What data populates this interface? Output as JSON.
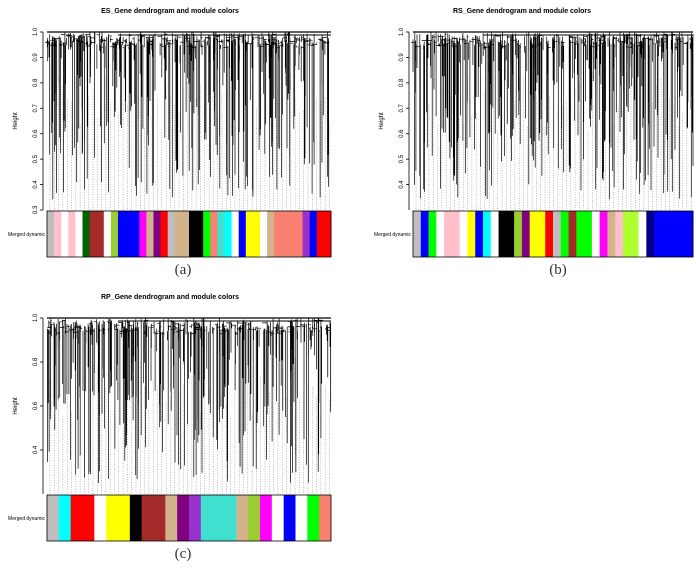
{
  "panels": [
    {
      "title": "ES_Gene dendrogram and module colors",
      "y_axis_label": "Height",
      "y_ticks": [
        "0.3",
        "0.4",
        "0.5",
        "0.6",
        "0.7",
        "0.8",
        "0.9",
        "1.0"
      ],
      "y_range": [
        0.3,
        1.0
      ],
      "color_row_label": "Merged dynamic",
      "caption": "(a)",
      "module_colors": [
        "#bebebe",
        "#ffc0cb",
        "#ffffff",
        "#ffc0cb",
        "#ffffff",
        "#006400",
        "#a52a2a",
        "#a52a2a",
        "#ffffff",
        "#9acd32",
        "#0000ff",
        "#0000ff",
        "#0000ff",
        "#ff00ff",
        "#d2b48c",
        "#800080",
        "#ff0000",
        "#bebebe",
        "#d2b48c",
        "#d2b48c",
        "#000000",
        "#000000",
        "#00ff00",
        "#fa8072",
        "#40e0d0",
        "#00ffff",
        "#ffffff",
        "#0000ff",
        "#ffff00",
        "#ffff00",
        "#ffffff",
        "#d2b48c",
        "#fa8072",
        "#fa8072",
        "#fa8072",
        "#fa8072",
        "#9932cc",
        "#0000ff",
        "#ff0000",
        "#ff0000"
      ]
    },
    {
      "title": "RS_Gene dendrogram and module colors",
      "y_axis_label": "Height",
      "y_ticks": [
        "0.4",
        "0.5",
        "0.6",
        "0.7",
        "0.8",
        "0.9",
        "1.0"
      ],
      "y_range": [
        0.3,
        1.0
      ],
      "color_row_label": "Merged dynamic",
      "caption": "(b)",
      "module_colors": [
        "#bebebe",
        "#0000ff",
        "#00ff00",
        "#ffffff",
        "#ffc0cb",
        "#ffc0cb",
        "#ffffff",
        "#ffff00",
        "#0000ff",
        "#00ffff",
        "#ffffff",
        "#000000",
        "#000000",
        "#9acd32",
        "#800080",
        "#ffff00",
        "#ffff00",
        "#ff0000",
        "#bebebe",
        "#00ff00",
        "#a52a2a",
        "#00ff00",
        "#00ff00",
        "#ffffff",
        "#ff00ff",
        "#d2b48c",
        "#ffc0cb",
        "#adff2f",
        "#adff2f",
        "#ffffff",
        "#00008b",
        "#0000ff",
        "#0000ff",
        "#0000ff",
        "#0000ff",
        "#0000ff"
      ]
    },
    {
      "title": "RP_Gene dendrogram and module colors",
      "y_axis_label": "Height",
      "y_ticks": [
        "0.4",
        "0.6",
        "0.8",
        "1.0"
      ],
      "y_range": [
        0.2,
        1.0
      ],
      "color_row_label": "Merged dynamic",
      "caption": "(c)",
      "module_colors": [
        "#bebebe",
        "#00ffff",
        "#ff0000",
        "#ff0000",
        "#ffffff",
        "#ffff00",
        "#ffff00",
        "#000000",
        "#a52a2a",
        "#a52a2a",
        "#d2b48c",
        "#800080",
        "#9932cc",
        "#40e0d0",
        "#40e0d0",
        "#40e0d0",
        "#d2b48c",
        "#9acd32",
        "#ff00ff",
        "#ffffff",
        "#0000ff",
        "#ffffff",
        "#00ff00",
        "#fa8072"
      ]
    }
  ]
}
